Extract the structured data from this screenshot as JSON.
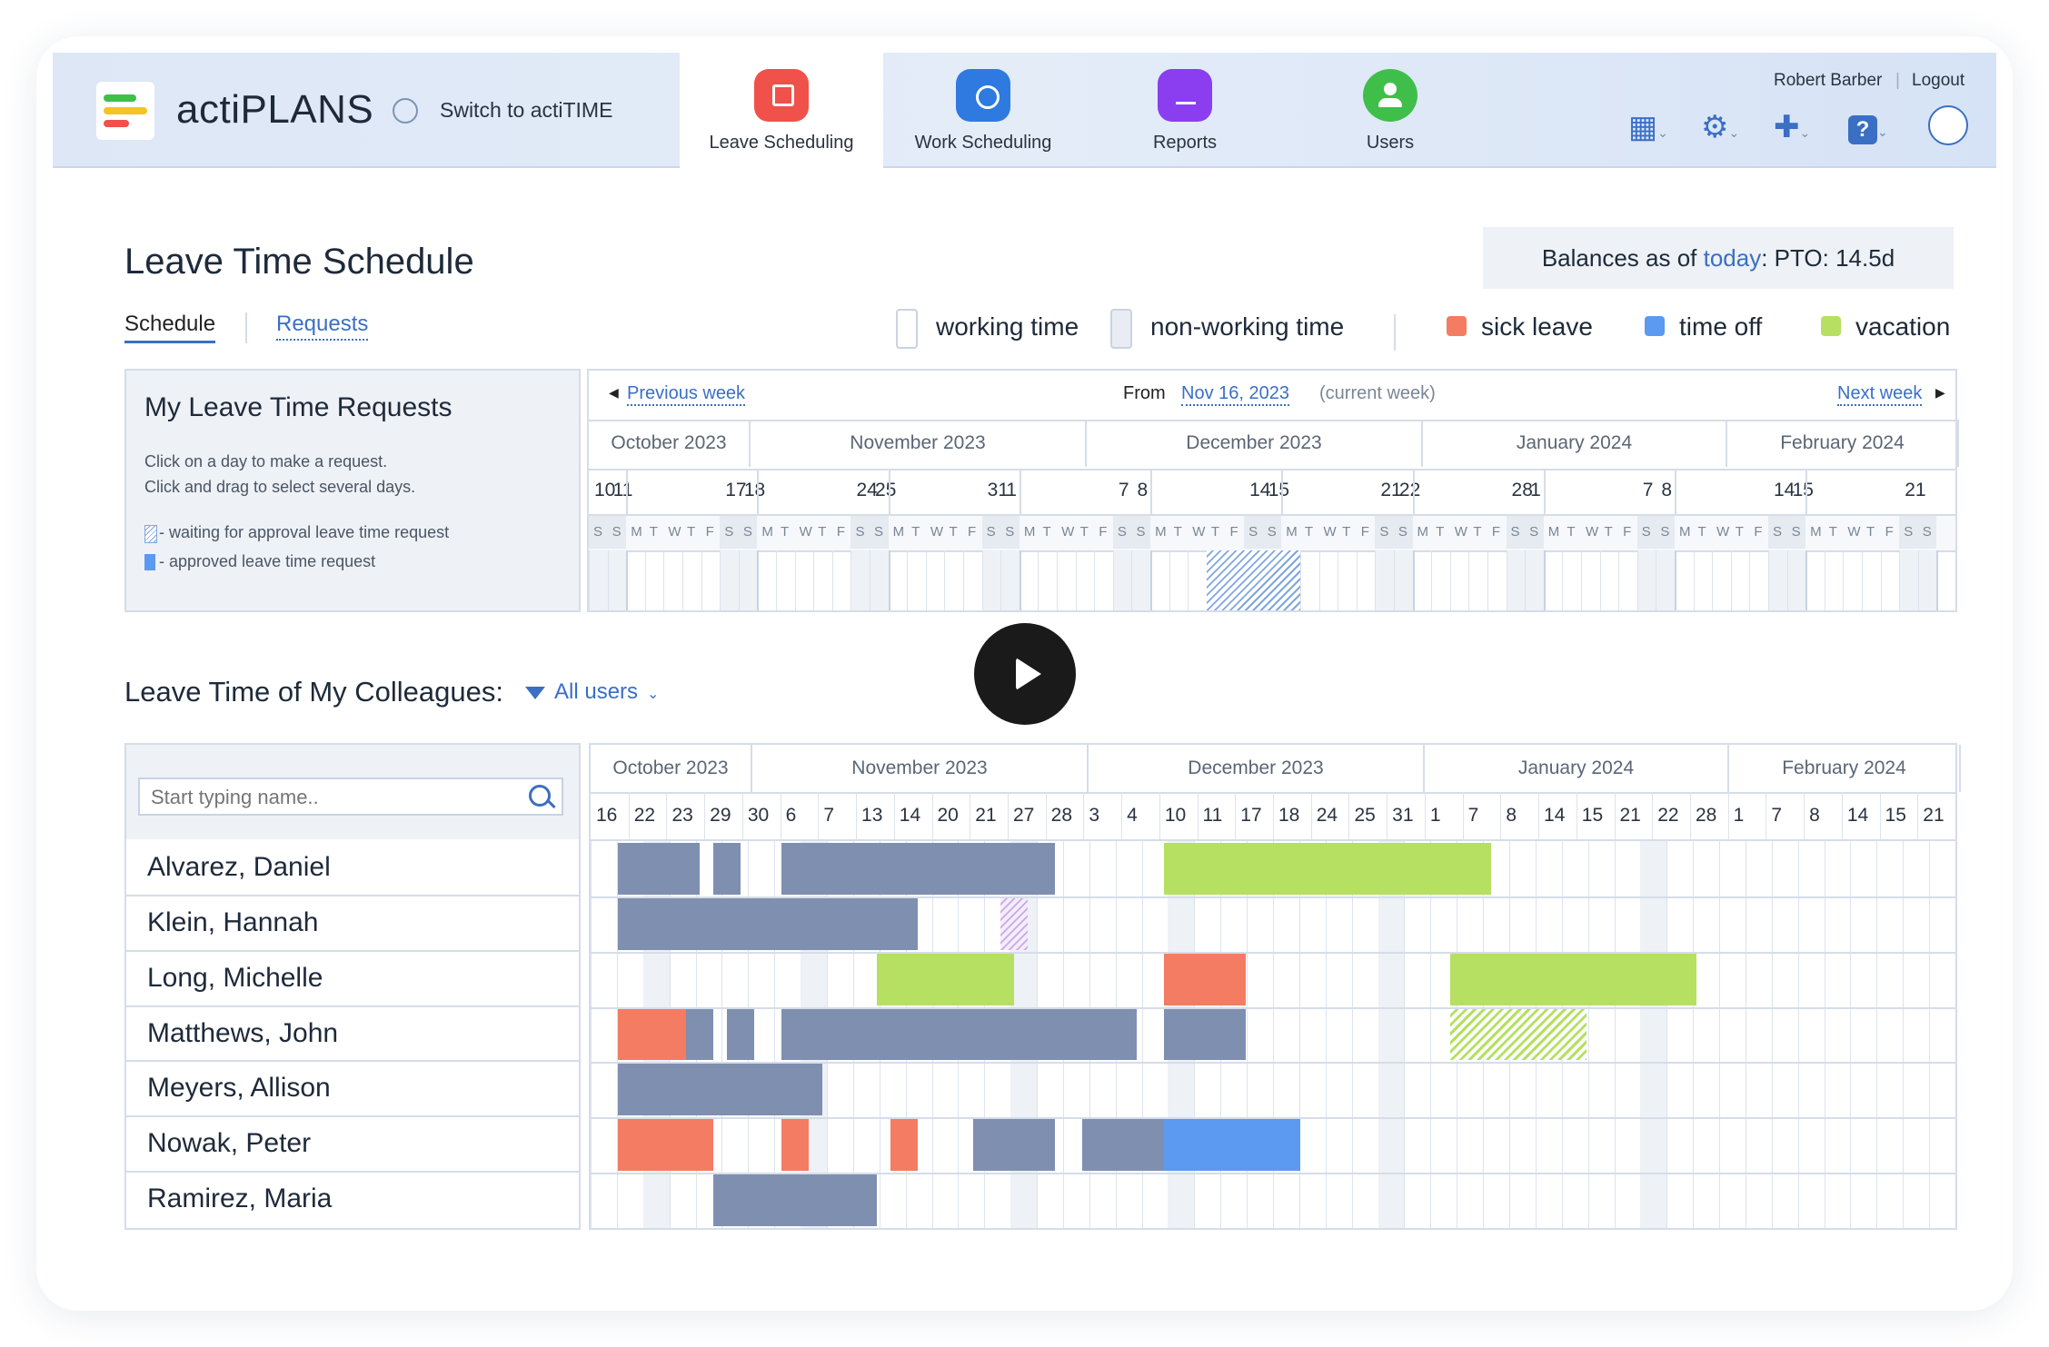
{
  "header": {
    "brand": "actiPLANS",
    "switch_label": "Switch to actiTIME",
    "tabs": [
      {
        "label": "Leave Scheduling",
        "color": "#f0514a",
        "active": true
      },
      {
        "label": "Work Scheduling",
        "color": "#2e7ae0",
        "active": false
      },
      {
        "label": "Reports",
        "color": "#8a3ef0",
        "active": false
      },
      {
        "label": "Users",
        "color": "#3fbf4a",
        "active": false
      }
    ],
    "user_name": "Robert Barber",
    "logout_label": "Logout"
  },
  "page": {
    "title": "Leave Time Schedule",
    "tab_schedule": "Schedule",
    "tab_requests": "Requests",
    "balances_prefix": "Balances as of ",
    "balances_link": "today",
    "balances_suffix": ":   PTO: 14.5d"
  },
  "legend": [
    {
      "label": "working time",
      "color": "#ffffff",
      "border": "#c8d3e2"
    },
    {
      "label": "non-working time",
      "color": "#e9edf3",
      "border": "#c8d3e2"
    },
    {
      "label": "sick leave",
      "color": "#f47c62"
    },
    {
      "label": "time off",
      "color": "#5b9af0"
    },
    {
      "label": "vacation",
      "color": "#b5e061"
    }
  ],
  "my_requests": {
    "title": "My Leave Time Requests",
    "hint1": "Click on a day to make a request.",
    "hint2": "Click and drag to select several days.",
    "key_waiting": "- waiting for approval leave time request",
    "key_approved": "- approved leave time request",
    "prev_week": "Previous week",
    "from_label": "From",
    "from_date": "Nov 16, 2023",
    "current_week": "(current week)",
    "next_week": "Next week"
  },
  "colleagues": {
    "title": "Leave Time of My Colleagues:",
    "filter_label": "All users",
    "search_placeholder": "Start typing name.."
  },
  "top_calendar": {
    "months": [
      {
        "label": "October 2023",
        "w": 178
      },
      {
        "label": "November 2023",
        "w": 370
      },
      {
        "label": "December 2023",
        "w": 370
      },
      {
        "label": "January 2024",
        "w": 335
      },
      {
        "label": "February 2024",
        "w": 255
      }
    ],
    "day_numbers": [
      "10",
      "11",
      "17",
      "18",
      "24",
      "25",
      "31",
      "1",
      "7",
      "8",
      "14",
      "15",
      "21",
      "22",
      "28",
      "1",
      "7",
      "8",
      "14",
      "15",
      "21"
    ],
    "weekday_letters": "SSMTWTFSSMTWTFSSMTWTFSSMTWTFSSMTWTFSSMTWTFSSMTWTFSSMTWTFSSMTWTFSSMTWTFSS"
  },
  "bottom_calendar": {
    "months": [
      {
        "label": "October 2023",
        "w": 178
      },
      {
        "label": "November 2023",
        "w": 370
      },
      {
        "label": "December 2023",
        "w": 370
      },
      {
        "label": "January 2024",
        "w": 335
      },
      {
        "label": "February 2024",
        "w": 255
      }
    ],
    "day_numbers": [
      "16",
      "22",
      "23",
      "29",
      "30",
      "6",
      "7",
      "13",
      "14",
      "20",
      "21",
      "27",
      "28",
      "3",
      "4",
      "10",
      "11",
      "17",
      "18",
      "24",
      "25",
      "31",
      "1",
      "7",
      "8",
      "14",
      "15",
      "21",
      "22",
      "28",
      "1",
      "7",
      "8",
      "14",
      "15",
      "21"
    ]
  },
  "people": [
    {
      "name": "Alvarez, Daniel"
    },
    {
      "name": "Klein, Hannah"
    },
    {
      "name": "Long, Michelle"
    },
    {
      "name": "Matthews, John"
    },
    {
      "name": "Meyers, Allison"
    },
    {
      "name": "Nowak, Peter"
    },
    {
      "name": "Ramirez, Maria"
    }
  ],
  "leave_colors": {
    "work": "#7f8fb0",
    "sick": "#f47c62",
    "off": "#5b9af0",
    "vacation": "#b5e061",
    "pending": "#c9a9e6"
  }
}
